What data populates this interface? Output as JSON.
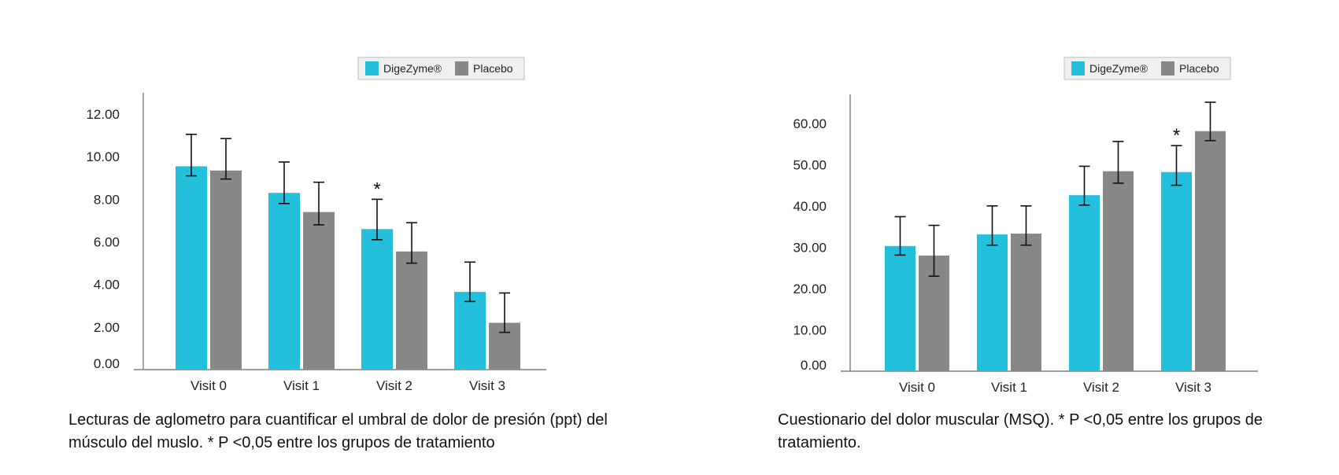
{
  "colors": {
    "digezyme": "#22c0da",
    "placebo": "#888888",
    "axis": "#666666",
    "errorbar": "#111111"
  },
  "chart_data": [
    {
      "type": "bar",
      "categories": [
        "Visit 0",
        "Visit 1",
        "Visit 2",
        "Visit 3"
      ],
      "series": [
        {
          "name": "DigeZyme®",
          "values": [
            9.55,
            8.3,
            6.6,
            3.65
          ],
          "err_low": [
            9.1,
            7.8,
            6.1,
            3.2
          ],
          "err_high": [
            11.05,
            9.75,
            8.0,
            5.05
          ]
        },
        {
          "name": "Placebo",
          "values": [
            9.35,
            7.4,
            5.55,
            2.2
          ],
          "err_low": [
            8.95,
            6.8,
            5.0,
            1.75
          ],
          "err_high": [
            10.85,
            8.8,
            6.9,
            3.6
          ]
        }
      ],
      "yticks": [
        "0.00",
        "2.00",
        "4.00",
        "6.00",
        "8.00",
        "10.00",
        "12.00"
      ],
      "ylim": [
        0,
        13
      ],
      "significance": [
        {
          "category": "Visit 2",
          "label": "*"
        }
      ],
      "legend": "top-right",
      "caption": "Lecturas de aglometro para cuantificar el umbral de dolor de presión (ppt) del músculo del muslo. * P <0,05 entre los grupos de tratamiento"
    },
    {
      "type": "bar",
      "categories": [
        "Visit 0",
        "Visit 1",
        "Visit 2",
        "Visit 3"
      ],
      "series": [
        {
          "name": "DigeZyme®",
          "values": [
            30.3,
            33.1,
            42.6,
            48.2
          ],
          "err_low": [
            28.1,
            30.5,
            40.2,
            45.0
          ],
          "err_high": [
            37.4,
            40.0,
            49.6,
            54.6
          ]
        },
        {
          "name": "Placebo",
          "values": [
            28.0,
            33.3,
            48.4,
            58.1
          ],
          "err_low": [
            23.0,
            30.5,
            45.5,
            55.8
          ],
          "err_high": [
            35.3,
            40.0,
            55.6,
            65.1
          ]
        }
      ],
      "yticks": [
        "0.00",
        "10.00",
        "20.00",
        "30.00",
        "40.00",
        "50.00",
        "60.00"
      ],
      "ylim": [
        0,
        67
      ],
      "significance": [
        {
          "category": "Visit 3",
          "label": "*"
        }
      ],
      "legend": "top-right",
      "caption": "Cuestionario del dolor muscular (MSQ). * P <0,05 entre los grupos de tratamiento."
    }
  ]
}
